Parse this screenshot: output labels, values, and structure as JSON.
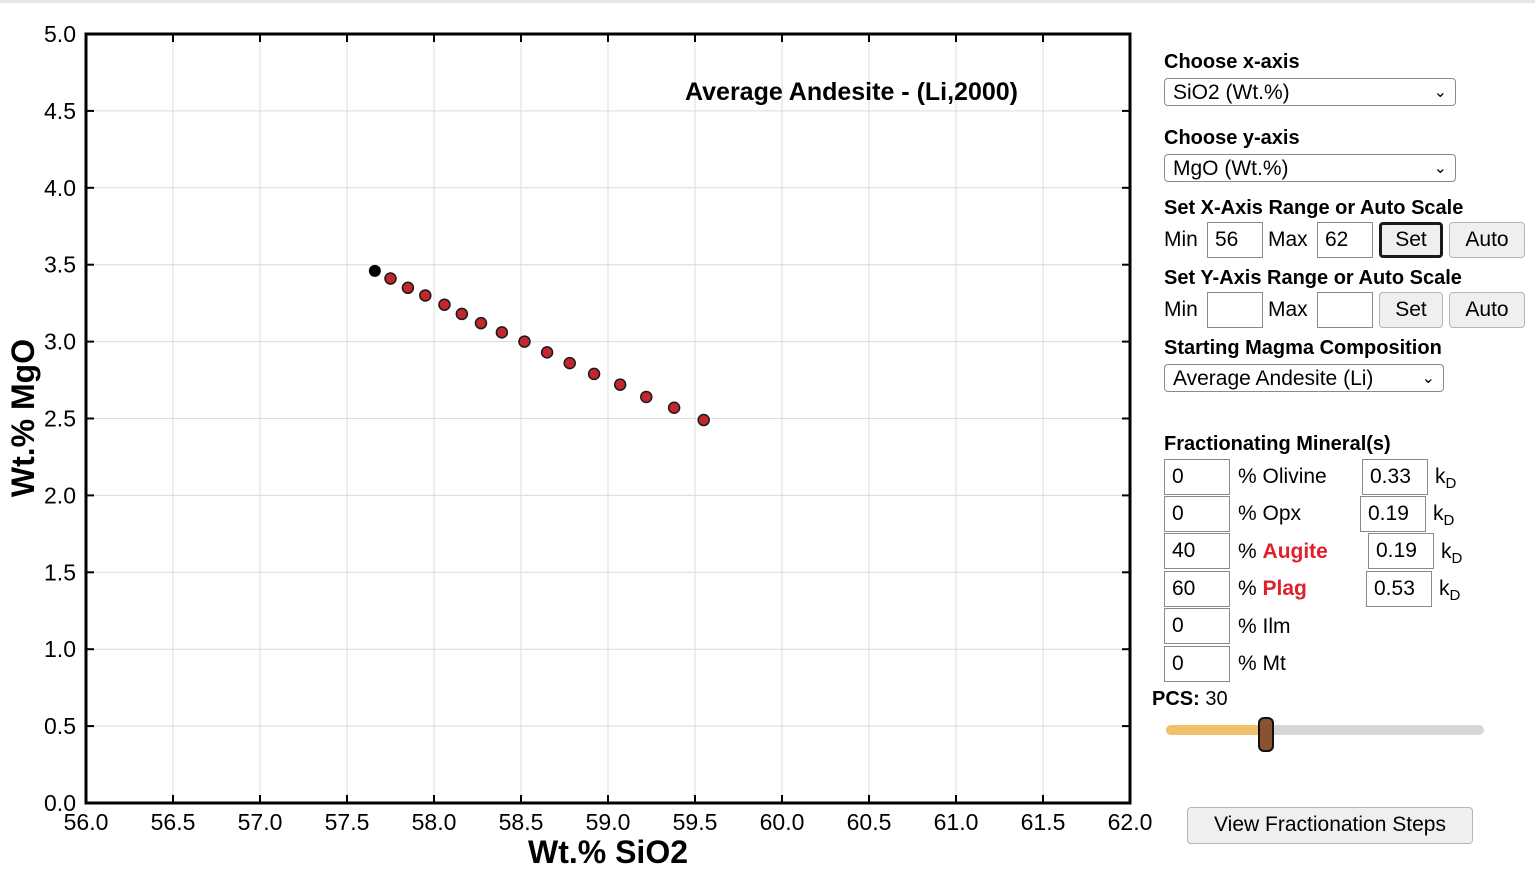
{
  "chart_data": {
    "type": "scatter",
    "title": "Average Andesite - (Li,2000)",
    "xlabel": "Wt.% SiO2",
    "ylabel": "Wt.% MgO",
    "xlim": [
      56.0,
      62.0
    ],
    "ylim": [
      0.0,
      5.0
    ],
    "xticks": [
      "56.0",
      "56.5",
      "57.0",
      "57.5",
      "58.0",
      "58.5",
      "59.0",
      "59.5",
      "60.0",
      "60.5",
      "61.0",
      "61.5",
      "62.0"
    ],
    "yticks": [
      "0.0",
      "0.5",
      "1.0",
      "1.5",
      "2.0",
      "2.5",
      "3.0",
      "3.5",
      "4.0",
      "4.5",
      "5.0"
    ],
    "grid": true,
    "start_point": {
      "x": 57.66,
      "y": 3.46,
      "color": "#000000"
    },
    "series": [
      {
        "color": "#c1272d",
        "x": [
          57.75,
          57.85,
          57.95,
          58.06,
          58.16,
          58.27,
          58.39,
          58.52,
          58.65,
          58.78,
          58.92,
          59.07,
          59.22,
          59.38,
          59.55
        ],
        "y": [
          3.41,
          3.35,
          3.3,
          3.24,
          3.18,
          3.12,
          3.06,
          3.0,
          2.93,
          2.86,
          2.79,
          2.72,
          2.64,
          2.57,
          2.49
        ]
      }
    ]
  },
  "controls": {
    "x_axis_label": "Choose x-axis",
    "x_axis_value": "SiO2 (Wt.%)",
    "y_axis_label": "Choose y-axis",
    "y_axis_value": "MgO (Wt.%)",
    "x_range_label": "Set X-Axis Range or Auto Scale",
    "y_range_label": "Set Y-Axis Range or Auto Scale",
    "min_label": "Min",
    "max_label": "Max",
    "x_min": "56",
    "x_max": "62",
    "y_min": "",
    "y_max": "",
    "set_label": "Set",
    "auto_label": "Auto",
    "magma_label": "Starting Magma Composition",
    "magma_value": "Average Andesite (Li)",
    "minerals_label": "Fractionating Mineral(s)",
    "kd_label": "k",
    "kd_sub": "D",
    "minerals": [
      {
        "pct": "0",
        "name": "Olivine",
        "kd": "0.33",
        "active": false
      },
      {
        "pct": "0",
        "name": "Opx",
        "kd": "0.19",
        "active": false
      },
      {
        "pct": "40",
        "name": "Augite",
        "kd": "0.19",
        "active": true
      },
      {
        "pct": "60",
        "name": "Plag",
        "kd": "0.53",
        "active": true
      },
      {
        "pct": "0",
        "name": "Ilm",
        "active": false
      },
      {
        "pct": "0",
        "name": "Mt",
        "active": false
      }
    ],
    "pct_symbol": "%",
    "pcs_label": "PCS:",
    "pcs_value": "30",
    "pcs_fraction": 0.3,
    "view_steps_label": "View Fractionation Steps"
  },
  "colors": {
    "slider_fill": "#f2c06a",
    "slider_track": "#d6d6d6",
    "thumb": "#8a5230",
    "active_mineral": "#e0202a"
  }
}
